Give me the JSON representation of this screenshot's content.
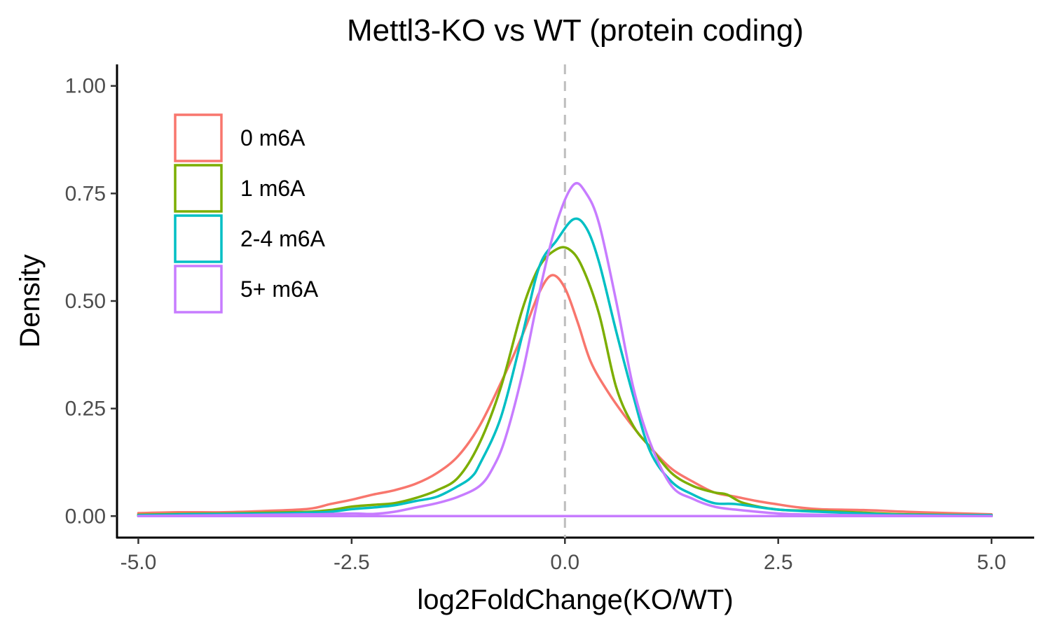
{
  "chart_data": {
    "type": "line",
    "title": "Mettl3-KO vs WT (protein coding)",
    "xlabel": "log2FoldChange(KO/WT)",
    "ylabel": "Density",
    "xlim": [
      -5.25,
      5.5
    ],
    "ylim": [
      -0.05,
      1.05
    ],
    "x_ticks": [
      "-5.0",
      "-2.5",
      "0.0",
      "2.5",
      "5.0"
    ],
    "x_tick_values": [
      -5,
      -2.5,
      0,
      2.5,
      5
    ],
    "y_ticks": [
      "0.00",
      "0.25",
      "0.50",
      "0.75",
      "1.00"
    ],
    "y_tick_values": [
      0,
      0.25,
      0.5,
      0.75,
      1.0
    ],
    "reference_line": {
      "x": 0,
      "style": "dashed",
      "color": "#bebebe"
    },
    "grid": false,
    "legend": {
      "placement": "top-left"
    },
    "series": [
      {
        "name": "0 m6A",
        "color": "#F8766D",
        "points": [
          [
            -5,
            0.007
          ],
          [
            -4.5,
            0.009
          ],
          [
            -4,
            0.009
          ],
          [
            -3.5,
            0.012
          ],
          [
            -3,
            0.017
          ],
          [
            -2.75,
            0.028
          ],
          [
            -2.5,
            0.038
          ],
          [
            -2.25,
            0.05
          ],
          [
            -2,
            0.06
          ],
          [
            -1.75,
            0.075
          ],
          [
            -1.5,
            0.1
          ],
          [
            -1.25,
            0.14
          ],
          [
            -1,
            0.21
          ],
          [
            -0.75,
            0.31
          ],
          [
            -0.5,
            0.42
          ],
          [
            -0.3,
            0.52
          ],
          [
            -0.15,
            0.56
          ],
          [
            0,
            0.53
          ],
          [
            0.15,
            0.45
          ],
          [
            0.3,
            0.36
          ],
          [
            0.5,
            0.29
          ],
          [
            0.75,
            0.22
          ],
          [
            1,
            0.16
          ],
          [
            1.25,
            0.11
          ],
          [
            1.5,
            0.08
          ],
          [
            1.75,
            0.055
          ],
          [
            2,
            0.045
          ],
          [
            2.25,
            0.035
          ],
          [
            2.5,
            0.027
          ],
          [
            2.75,
            0.02
          ],
          [
            3,
            0.016
          ],
          [
            3.5,
            0.014
          ],
          [
            4,
            0.01
          ],
          [
            4.5,
            0.007
          ],
          [
            5,
            0.004
          ]
        ]
      },
      {
        "name": "1 m6A",
        "color": "#7CAE00",
        "points": [
          [
            -5,
            0.003
          ],
          [
            -4.5,
            0.005
          ],
          [
            -4,
            0.006
          ],
          [
            -3.5,
            0.008
          ],
          [
            -3,
            0.01
          ],
          [
            -2.75,
            0.014
          ],
          [
            -2.5,
            0.022
          ],
          [
            -2.25,
            0.026
          ],
          [
            -2,
            0.03
          ],
          [
            -1.75,
            0.042
          ],
          [
            -1.5,
            0.06
          ],
          [
            -1.25,
            0.09
          ],
          [
            -1,
            0.17
          ],
          [
            -0.75,
            0.3
          ],
          [
            -0.5,
            0.48
          ],
          [
            -0.3,
            0.58
          ],
          [
            -0.1,
            0.62
          ],
          [
            0.05,
            0.62
          ],
          [
            0.2,
            0.58
          ],
          [
            0.4,
            0.47
          ],
          [
            0.6,
            0.3
          ],
          [
            0.8,
            0.21
          ],
          [
            1,
            0.16
          ],
          [
            1.25,
            0.1
          ],
          [
            1.5,
            0.07
          ],
          [
            1.75,
            0.055
          ],
          [
            1.9,
            0.05
          ],
          [
            2.1,
            0.03
          ],
          [
            2.5,
            0.015
          ],
          [
            3,
            0.012
          ],
          [
            3.5,
            0.008
          ],
          [
            4,
            0.004
          ],
          [
            5,
            0.002
          ]
        ]
      },
      {
        "name": "2-4 m6A",
        "color": "#00BFC4",
        "points": [
          [
            -5,
            0.002
          ],
          [
            -4.5,
            0.004
          ],
          [
            -4,
            0.005
          ],
          [
            -3.5,
            0.006
          ],
          [
            -3,
            0.008
          ],
          [
            -2.75,
            0.01
          ],
          [
            -2.5,
            0.016
          ],
          [
            -2.25,
            0.02
          ],
          [
            -2,
            0.025
          ],
          [
            -1.75,
            0.035
          ],
          [
            -1.5,
            0.045
          ],
          [
            -1.25,
            0.07
          ],
          [
            -1.1,
            0.09
          ],
          [
            -1,
            0.12
          ],
          [
            -0.75,
            0.23
          ],
          [
            -0.5,
            0.42
          ],
          [
            -0.3,
            0.58
          ],
          [
            -0.1,
            0.64
          ],
          [
            0.1,
            0.69
          ],
          [
            0.25,
            0.67
          ],
          [
            0.4,
            0.59
          ],
          [
            0.6,
            0.43
          ],
          [
            0.8,
            0.28
          ],
          [
            1,
            0.15
          ],
          [
            1.25,
            0.08
          ],
          [
            1.5,
            0.05
          ],
          [
            1.75,
            0.03
          ],
          [
            2,
            0.028
          ],
          [
            2.5,
            0.015
          ],
          [
            3,
            0.01
          ],
          [
            3.5,
            0.006
          ],
          [
            4,
            0.003
          ],
          [
            5,
            0.002
          ]
        ]
      },
      {
        "name": "5+ m6A",
        "color": "#C77CFF",
        "points": [
          [
            -5,
            0.0
          ],
          [
            -4.5,
            0.001
          ],
          [
            -4,
            0.002
          ],
          [
            -3.5,
            0.003
          ],
          [
            -3,
            0.004
          ],
          [
            -2.5,
            0.006
          ],
          [
            -2.25,
            0.005
          ],
          [
            -2,
            0.01
          ],
          [
            -1.75,
            0.02
          ],
          [
            -1.5,
            0.03
          ],
          [
            -1.25,
            0.045
          ],
          [
            -1,
            0.07
          ],
          [
            -0.85,
            0.11
          ],
          [
            -0.7,
            0.18
          ],
          [
            -0.5,
            0.33
          ],
          [
            -0.3,
            0.52
          ],
          [
            -0.1,
            0.68
          ],
          [
            0.1,
            0.77
          ],
          [
            0.25,
            0.75
          ],
          [
            0.4,
            0.68
          ],
          [
            0.6,
            0.5
          ],
          [
            0.8,
            0.3
          ],
          [
            1,
            0.17
          ],
          [
            1.25,
            0.07
          ],
          [
            1.5,
            0.04
          ],
          [
            1.75,
            0.022
          ],
          [
            2,
            0.015
          ],
          [
            2.5,
            0.006
          ],
          [
            3,
            0.003
          ],
          [
            4,
            0.001
          ],
          [
            5,
            0.0
          ]
        ]
      }
    ]
  }
}
